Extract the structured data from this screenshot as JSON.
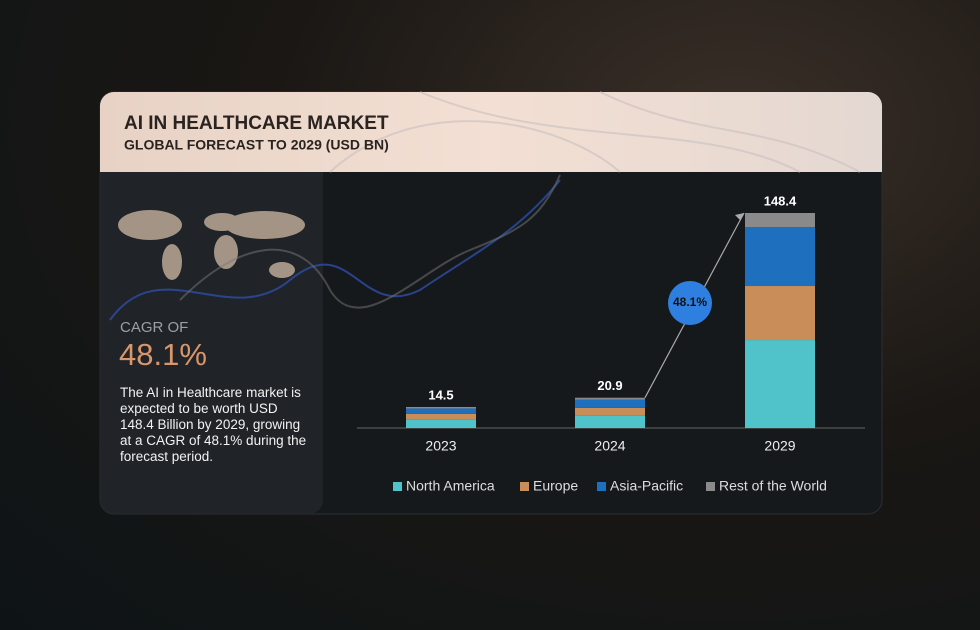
{
  "header": {
    "title": "AI IN HEALTHCARE MARKET",
    "subtitle": "GLOBAL FORECAST TO 2029 (USD BN)"
  },
  "sidebar": {
    "cagr_caption": "CAGR OF",
    "cagr_value": "48.1%",
    "text": "The AI in Healthcare market is expected to be worth USD 148.4 Billion by 2029, growing at a CAGR of 48.1% during the forecast period."
  },
  "chart_data": {
    "type": "stacked_bar",
    "categories": [
      "2023",
      "2024",
      "2029"
    ],
    "series": [
      {
        "name": "North America",
        "color": "#4fc3c9",
        "values": [
          6.0,
          8.5,
          60.7
        ]
      },
      {
        "name": "Europe",
        "color": "#c98d5a",
        "values": [
          3.7,
          5.4,
          37.3
        ]
      },
      {
        "name": "Asia-Pacific",
        "color": "#1f6fbf",
        "values": [
          3.8,
          5.6,
          40.7
        ]
      },
      {
        "name": "Rest of the World",
        "color": "#8a8a8a",
        "values": [
          1.0,
          1.4,
          9.7
        ]
      }
    ],
    "totals": [
      14.5,
      20.9,
      148.4
    ],
    "growth_label": "48.1%"
  }
}
